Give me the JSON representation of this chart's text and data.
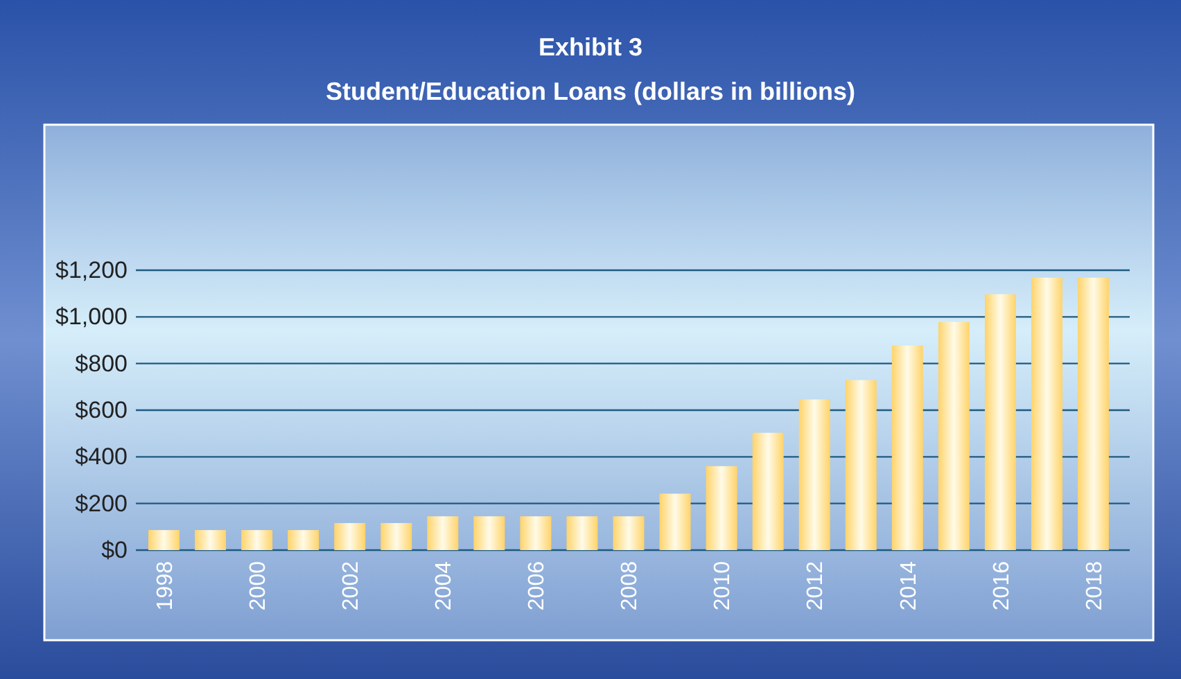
{
  "chart_data": {
    "type": "bar",
    "title": "Exhibit 3",
    "subtitle": "Student/Education Loans (dollars in billions)",
    "categories": [
      "1998",
      null,
      "2000",
      null,
      "2002",
      null,
      "2004",
      null,
      "2006",
      null,
      "2008",
      null,
      "2010",
      null,
      "2012",
      null,
      "2014",
      null,
      "2016",
      null,
      "2018"
    ],
    "values": [
      86,
      86,
      86,
      86,
      116,
      116,
      145,
      145,
      145,
      145,
      145,
      242,
      360,
      503,
      646,
      729,
      877,
      978,
      1097,
      1168,
      1168
    ],
    "color": "#ffd36a",
    "ylim": [
      0,
      1200
    ],
    "yticks": [
      {
        "value": 0,
        "label": "$0"
      },
      {
        "value": 200,
        "label": "$200"
      },
      {
        "value": 400,
        "label": "$400"
      },
      {
        "value": 600,
        "label": "$600"
      },
      {
        "value": 800,
        "label": "$800"
      },
      {
        "value": 1000,
        "label": "$1,000"
      },
      {
        "value": 1200,
        "label": "$1,200"
      }
    ],
    "grid": "y"
  }
}
